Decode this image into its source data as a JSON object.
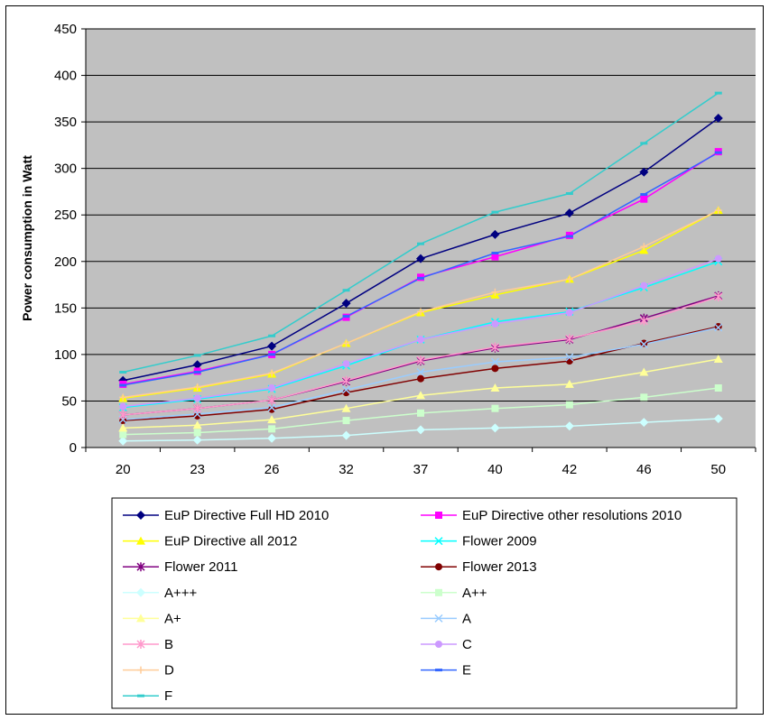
{
  "chart_data": {
    "type": "line",
    "title": "",
    "xlabel": "",
    "ylabel": "Power consumption in Watt",
    "categories": [
      "20",
      "23",
      "26",
      "32",
      "37",
      "40",
      "42",
      "46",
      "50"
    ],
    "ylim": [
      0,
      450
    ],
    "yticks": [
      0,
      50,
      100,
      150,
      200,
      250,
      300,
      350,
      400,
      450
    ],
    "grid": "horizontal",
    "plot_background": "#C0C0C0",
    "legend_position": "bottom",
    "series": [
      {
        "name": "EuP Directive Full HD 2010",
        "color": "#000080",
        "marker": "diamond",
        "values": [
          72,
          89,
          109,
          155,
          203,
          229,
          252,
          296,
          354
        ]
      },
      {
        "name": "EuP Directive other resolutions 2010",
        "color": "#FF00FF",
        "marker": "square",
        "values": [
          68,
          82,
          100,
          140,
          183,
          205,
          228,
          267,
          318
        ]
      },
      {
        "name": "EuP Directive all 2012",
        "color": "#FFFF00",
        "marker": "triangle",
        "values": [
          53,
          64,
          79,
          112,
          145,
          164,
          181,
          212,
          255
        ]
      },
      {
        "name": "Flower 2009",
        "color": "#00FFFF",
        "marker": "x",
        "values": [
          43,
          52,
          63,
          88,
          116,
          135,
          146,
          172,
          200
        ]
      },
      {
        "name": "Flower 2011",
        "color": "#800080",
        "marker": "star",
        "values": [
          35,
          42,
          51,
          71,
          93,
          107,
          116,
          139,
          163
        ]
      },
      {
        "name": "Flower 2013",
        "color": "#800000",
        "marker": "circle",
        "values": [
          29,
          34,
          41,
          59,
          74,
          85,
          93,
          112,
          130
        ]
      },
      {
        "name": "A+++",
        "color": "#CCFFFF",
        "marker": "diamond",
        "values": [
          7,
          8,
          10,
          13,
          19,
          21,
          23,
          27,
          31
        ]
      },
      {
        "name": "A++",
        "color": "#CCFFCC",
        "marker": "square",
        "values": [
          14,
          16,
          20,
          29,
          37,
          42,
          46,
          54,
          64
        ]
      },
      {
        "name": "A+",
        "color": "#FFFF99",
        "marker": "triangle",
        "values": [
          21,
          24,
          30,
          42,
          56,
          64,
          68,
          81,
          95
        ]
      },
      {
        "name": "A",
        "color": "#99CCFF",
        "marker": "x",
        "values": [
          30,
          36,
          43,
          62,
          81,
          92,
          97,
          111,
          129
        ]
      },
      {
        "name": "B",
        "color": "#FF99CC",
        "marker": "star",
        "values": [
          35,
          42,
          51,
          72,
          94,
          108,
          117,
          136,
          162
        ]
      },
      {
        "name": "C",
        "color": "#CC99FF",
        "marker": "circle",
        "values": [
          44,
          53,
          64,
          90,
          116,
          133,
          145,
          174,
          203
        ]
      },
      {
        "name": "D",
        "color": "#FFCC99",
        "marker": "plus",
        "values": [
          54,
          65,
          80,
          112,
          146,
          167,
          181,
          216,
          255
        ]
      },
      {
        "name": "E",
        "color": "#3366FF",
        "marker": "dash",
        "values": [
          67,
          81,
          100,
          141,
          182,
          209,
          227,
          272,
          317
        ]
      },
      {
        "name": "F",
        "color": "#33CCCC",
        "marker": "dash",
        "values": [
          81,
          99,
          120,
          169,
          219,
          253,
          273,
          327,
          381
        ]
      }
    ]
  }
}
